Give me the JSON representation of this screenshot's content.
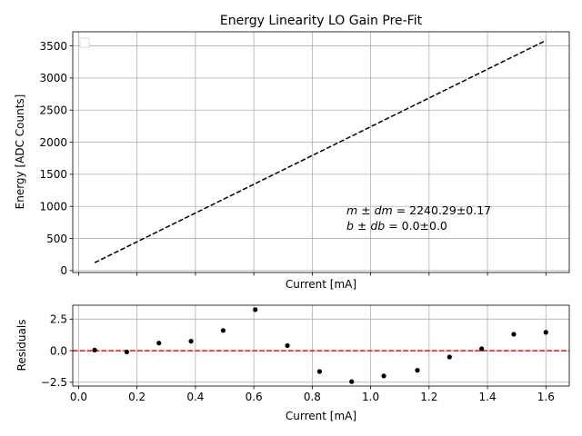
{
  "chart_data": [
    {
      "type": "line",
      "title": "Energy Linearity LO Gain Pre-Fit",
      "xlabel": "Current [mA]",
      "ylabel": "Energy [ADC Counts]",
      "xlim": [
        -0.02,
        1.68
      ],
      "ylim": [
        -30,
        3720
      ],
      "yticks": [
        0,
        500,
        1000,
        1500,
        2000,
        2500,
        3000,
        3500
      ],
      "ytick_labels": [
        "0",
        "500",
        "1000",
        "1500",
        "2000",
        "2500",
        "3000",
        "3500"
      ],
      "xticks": [
        0.0,
        0.2,
        0.4,
        0.6,
        0.8,
        1.0,
        1.2,
        1.4,
        1.6
      ],
      "grid": true,
      "legend": "top-left (empty)",
      "series": [
        {
          "style": "dashed",
          "color": "#000000",
          "x": [
            0.055,
            1.6
          ],
          "y": [
            123,
            3585
          ]
        }
      ],
      "annotations": [
        {
          "math": "m ± dm",
          "text": " = 2240.29±0.17"
        },
        {
          "math": "b ± db",
          "text": " = 0.0±0.0"
        }
      ]
    },
    {
      "type": "scatter",
      "xlabel": "Current [mA]",
      "ylabel": "Residuals",
      "xlim": [
        -0.02,
        1.68
      ],
      "ylim": [
        -2.8,
        3.6
      ],
      "yticks": [
        -2.5,
        0.0,
        2.5
      ],
      "ytick_labels": [
        "−2.5",
        "0.0",
        "2.5"
      ],
      "xticks": [
        0.0,
        0.2,
        0.4,
        0.6,
        0.8,
        1.0,
        1.2,
        1.4,
        1.6
      ],
      "xtick_labels": [
        "0.0",
        "0.2",
        "0.4",
        "0.6",
        "0.8",
        "1.0",
        "1.2",
        "1.4",
        "1.6"
      ],
      "grid": true,
      "reference_line": {
        "y": 0,
        "style": "dashed",
        "color": "#ff0000"
      },
      "series": [
        {
          "color": "#000000",
          "x": [
            0.055,
            0.165,
            0.275,
            0.385,
            0.495,
            0.605,
            0.715,
            0.825,
            0.935,
            1.045,
            1.16,
            1.27,
            1.38,
            1.49,
            1.6
          ],
          "y": [
            0.05,
            -0.1,
            0.6,
            0.75,
            1.6,
            3.25,
            0.4,
            -1.65,
            -2.45,
            -2.0,
            -1.55,
            -0.5,
            0.15,
            1.3,
            1.45
          ]
        }
      ]
    }
  ]
}
